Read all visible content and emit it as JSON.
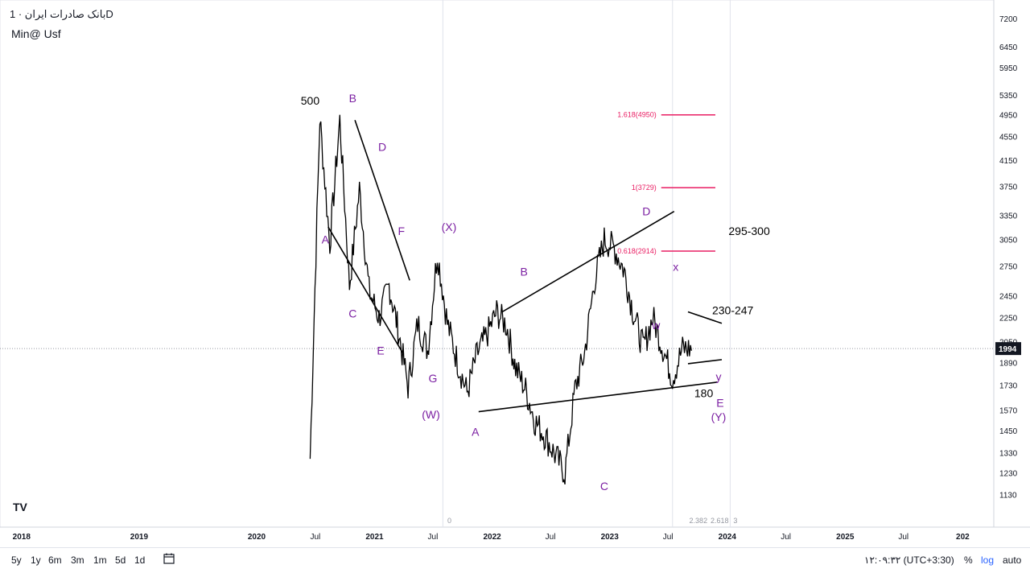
{
  "header": {
    "title": "بانک صادرات ایران · 1D",
    "subtitle": "Min@ Usf"
  },
  "price_axis": {
    "ticks": [
      "7200",
      "6450",
      "5950",
      "5350",
      "4950",
      "4550",
      "4150",
      "3750",
      "3350",
      "3050",
      "2750",
      "2450",
      "2250",
      "2050",
      "1890",
      "1730",
      "1570",
      "1450",
      "1330",
      "1230",
      "1130"
    ],
    "current": "1994"
  },
  "time_axis": {
    "ticks": [
      "2018",
      "2019",
      "2020",
      "Jul",
      "2021",
      "Jul",
      "2022",
      "Jul",
      "2023",
      "Jul",
      "2024",
      "Jul",
      "2025",
      "Jul",
      "202"
    ]
  },
  "wave_labels": [
    "500",
    "B",
    "D",
    "A",
    "F",
    "C",
    "E",
    "G",
    "(W)",
    "(X)",
    "B",
    "A",
    "C",
    "D",
    "x",
    "w",
    "y",
    "E",
    "(Y)",
    "180"
  ],
  "target_labels": [
    "295-300",
    "230-247"
  ],
  "fib_labels": [
    "1.618(4950)",
    "1(3729)",
    "0.618(2914)"
  ],
  "bottom_fib_labels": [
    "0",
    "2.382",
    "2.618",
    "3"
  ],
  "bottom_bar": {
    "ranges": [
      "5y",
      "1y",
      "6m",
      "3m",
      "1m",
      "5d",
      "1d"
    ],
    "clock": "۱۲:۰۹:۳۲ (UTC+3:30)",
    "percent": "%",
    "log": "log",
    "auto": "auto"
  },
  "colors": {
    "candles": "#000000",
    "wave_label": "#7b1fa2",
    "fib": "#e91e63",
    "price_tag": "#131722",
    "grid": "#e0e3eb"
  },
  "chart_data": {
    "type": "line",
    "title": "بانک صادرات ایران · 1D",
    "y_scale": "log",
    "ylim": [
      1050,
      7500
    ],
    "x": [
      "2020-06",
      "2020-07",
      "2020-08",
      "2020-09",
      "2020-10",
      "2020-11",
      "2020-12",
      "2021-01",
      "2021-02",
      "2021-03",
      "2021-04",
      "2021-05",
      "2021-06",
      "2021-07",
      "2021-08",
      "2021-09",
      "2021-10",
      "2021-11",
      "2021-12",
      "2022-01",
      "2022-02",
      "2022-03",
      "2022-04",
      "2022-05",
      "2022-06",
      "2022-07",
      "2022-08",
      "2022-09",
      "2022-10",
      "2022-11",
      "2022-12",
      "2023-01",
      "2023-02",
      "2023-03",
      "2023-04",
      "2023-05",
      "2023-06",
      "2023-07",
      "2023-08",
      "2023-09",
      "2023-10",
      "2023-11",
      "2023-12"
    ],
    "values": [
      1300,
      4900,
      3000,
      4850,
      2550,
      3700,
      2500,
      2250,
      2550,
      2150,
      1720,
      2200,
      1980,
      2900,
      2200,
      1900,
      1680,
      1950,
      2100,
      2300,
      2180,
      1850,
      1700,
      1500,
      1420,
      1320,
      1230,
      1700,
      1960,
      2600,
      3050,
      2950,
      2700,
      2300,
      2000,
      2250,
      2000,
      1780,
      1994,
      1994,
      1994,
      1994,
      1994
    ],
    "fib_levels": [
      {
        "ratio": "1.618",
        "price": 4950
      },
      {
        "ratio": "1",
        "price": 3729
      },
      {
        "ratio": "0.618",
        "price": 2914
      }
    ],
    "current_price": 1994,
    "grid": false,
    "legend": "none"
  }
}
